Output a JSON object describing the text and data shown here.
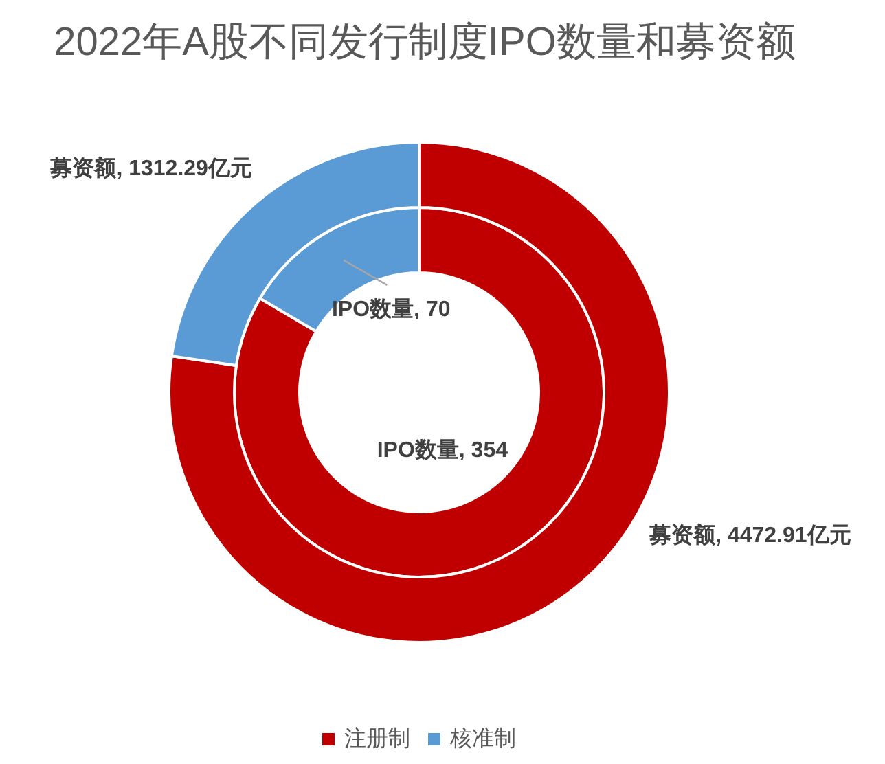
{
  "chart_data": {
    "type": "donut",
    "title": "2022年A股不同发行制度IPO数量和募资额",
    "categories": [
      "注册制",
      "核准制"
    ],
    "colors": [
      "#c00000",
      "#5b9bd5"
    ],
    "series": [
      {
        "values": [
          354,
          70
        ],
        "value_labels": [
          "IPO数量, 354",
          "IPO数量, 70"
        ]
      },
      {
        "values": [
          4472.91,
          1312.29
        ],
        "value_labels": [
          "募资额, 4472.91亿元",
          "募资额, 1312.29亿元"
        ]
      }
    ],
    "legend": "bottom"
  }
}
